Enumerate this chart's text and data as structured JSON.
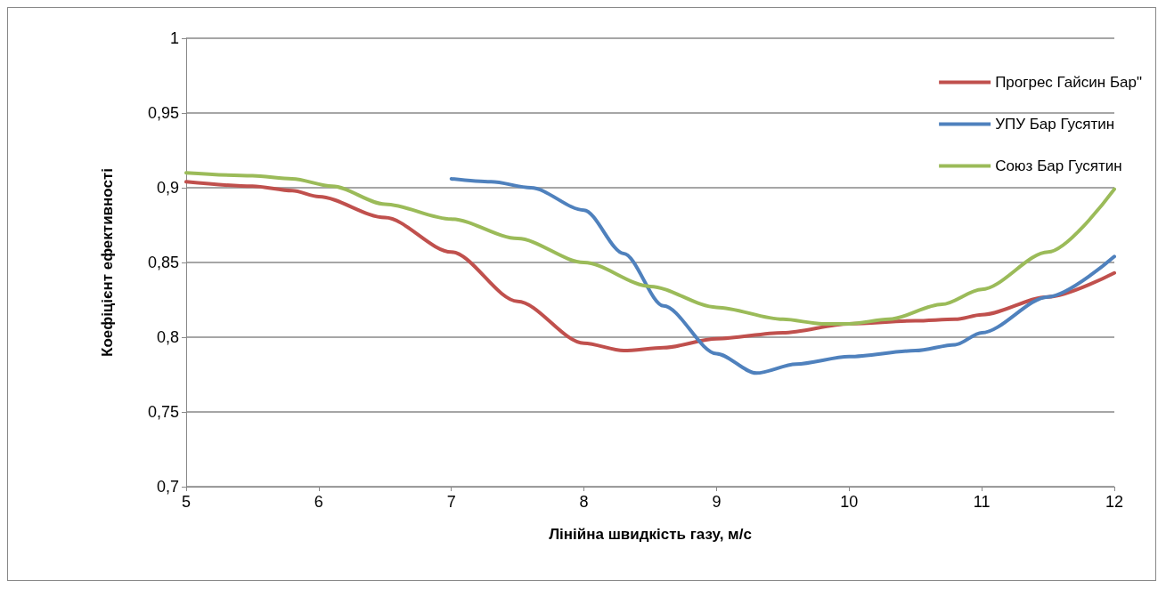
{
  "chart_data": {
    "type": "line",
    "xlabel": "Лінійна швидкість газу, м/с",
    "ylabel": "Коефіцієнт ефективності",
    "xlim": [
      5,
      12
    ],
    "xticks": [
      5,
      6,
      7,
      8,
      9,
      10,
      11,
      12
    ],
    "ylim": [
      0.7,
      1
    ],
    "yticks": [
      {
        "value": 0.7,
        "label": "0,7"
      },
      {
        "value": 0.75,
        "label": "0,75"
      },
      {
        "value": 0.8,
        "label": "0,8"
      },
      {
        "value": 0.85,
        "label": "0,85"
      },
      {
        "value": 0.9,
        "label": "0,9"
      },
      {
        "value": 0.95,
        "label": "0,95"
      },
      {
        "value": 1,
        "label": "1"
      }
    ],
    "grid": "y",
    "legend": "right",
    "marker": "none",
    "line_style": "solid",
    "series": [
      {
        "name": "Прогрес Гайсин Бар\"",
        "color": "#c0504d",
        "x": [
          5,
          5.5,
          5.8,
          6,
          6.5,
          7,
          7.5,
          8,
          8.3,
          8.6,
          9,
          9.5,
          10,
          10.5,
          10.8,
          11,
          11.5,
          12
        ],
        "values": [
          0.904,
          0.901,
          0.898,
          0.894,
          0.88,
          0.857,
          0.824,
          0.796,
          0.791,
          0.793,
          0.799,
          0.803,
          0.809,
          0.811,
          0.812,
          0.815,
          0.827,
          0.843
        ]
      },
      {
        "name": "УПУ Бар Гусятин",
        "color": "#4f81bd",
        "x": [
          7,
          7.3,
          7.6,
          8,
          8.3,
          8.6,
          9,
          9.3,
          9.6,
          10,
          10.5,
          10.8,
          11,
          11.5,
          12
        ],
        "values": [
          0.906,
          0.904,
          0.9,
          0.885,
          0.856,
          0.821,
          0.789,
          0.776,
          0.782,
          0.787,
          0.791,
          0.795,
          0.803,
          0.827,
          0.854
        ]
      },
      {
        "name": "Союз Бар Гусятин",
        "color": "#9bbb59",
        "x": [
          5,
          5.5,
          5.8,
          6.1,
          6.5,
          7,
          7.5,
          8,
          8.5,
          9,
          9.5,
          9.8,
          10,
          10.3,
          10.7,
          11,
          11.5,
          12
        ],
        "values": [
          0.91,
          0.908,
          0.906,
          0.901,
          0.889,
          0.879,
          0.866,
          0.85,
          0.834,
          0.82,
          0.812,
          0.809,
          0.809,
          0.812,
          0.822,
          0.832,
          0.857,
          0.899
        ]
      }
    ]
  }
}
